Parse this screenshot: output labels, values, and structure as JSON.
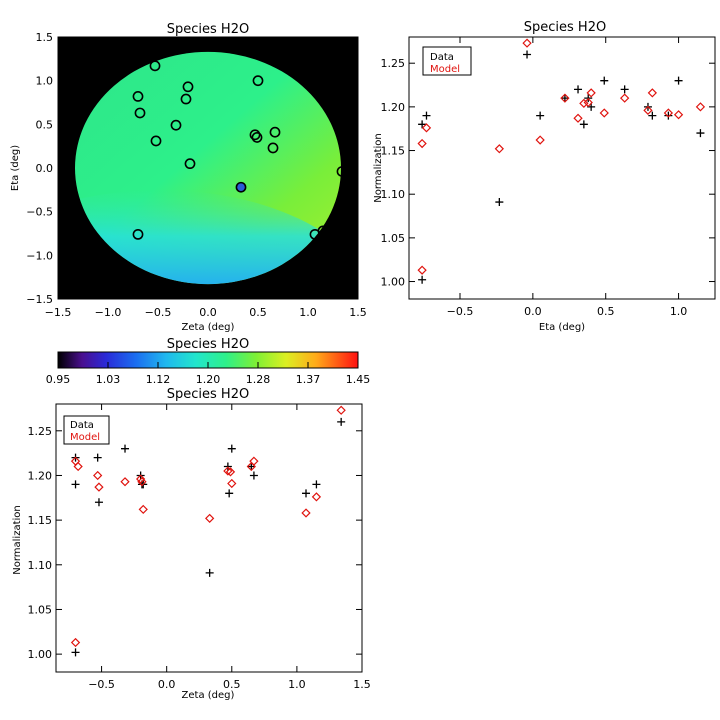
{
  "colors": {
    "data_marker": "#000000",
    "model_marker": "#e0140f",
    "map_background": "#000000",
    "highlight_marker": "#2a5bd7"
  },
  "chart_data": [
    {
      "id": "map",
      "type": "heatmap",
      "title": "Species H2O",
      "xlabel": "Zeta (deg)",
      "ylabel": "Eta (deg)",
      "xlim": [
        -1.5,
        1.5
      ],
      "ylim": [
        -1.5,
        1.5
      ],
      "xticks": [
        "−1.5",
        "−1.0",
        "−0.5",
        "0.0",
        "0.5",
        "1.0",
        "1.5"
      ],
      "yticks": [
        "−1.5",
        "−1.0",
        "−0.5",
        "0.0",
        "0.5",
        "1.0",
        "1.5"
      ],
      "field_radius": 1.33,
      "points": [
        {
          "zeta": -0.53,
          "eta": 1.17
        },
        {
          "zeta": -0.2,
          "eta": 0.93
        },
        {
          "zeta": 0.5,
          "eta": 1.0
        },
        {
          "zeta": -0.7,
          "eta": 0.82
        },
        {
          "zeta": -0.22,
          "eta": 0.79
        },
        {
          "zeta": -0.68,
          "eta": 0.63
        },
        {
          "zeta": -0.32,
          "eta": 0.49
        },
        {
          "zeta": 0.67,
          "eta": 0.41
        },
        {
          "zeta": 0.47,
          "eta": 0.38
        },
        {
          "zeta": 0.49,
          "eta": 0.35
        },
        {
          "zeta": -0.52,
          "eta": 0.31
        },
        {
          "zeta": 0.65,
          "eta": 0.23
        },
        {
          "zeta": -0.18,
          "eta": 0.05
        },
        {
          "zeta": 1.34,
          "eta": -0.04
        },
        {
          "zeta": 0.33,
          "eta": -0.22,
          "highlight": true
        },
        {
          "zeta": -0.7,
          "eta": -0.76
        },
        {
          "zeta": 1.15,
          "eta": -0.72
        },
        {
          "zeta": 1.07,
          "eta": -0.76
        }
      ]
    },
    {
      "id": "colorbar",
      "type": "heatmap",
      "title": "Species H2O",
      "range": [
        0.95,
        1.45
      ],
      "tick_labels": [
        "0.95",
        "1.03",
        "1.12",
        "1.20",
        "1.28",
        "1.37",
        "1.45"
      ]
    },
    {
      "id": "eta_plot",
      "type": "scatter",
      "title": "Species H2O",
      "xlabel": "Eta (deg)",
      "ylabel": "Normalization",
      "xlim": [
        -0.85,
        1.25
      ],
      "ylim": [
        0.98,
        1.28
      ],
      "xticks": [
        -0.5,
        0.0,
        0.5,
        1.0
      ],
      "xtick_labels": [
        "−0.5",
        "0.0",
        "0.5",
        "1.0"
      ],
      "yticks": [
        1.0,
        1.05,
        1.1,
        1.15,
        1.2,
        1.25
      ],
      "ytick_labels": [
        "1.00",
        "1.05",
        "1.10",
        "1.15",
        "1.20",
        "1.25"
      ],
      "legend": [
        "Data",
        "Model"
      ],
      "series": [
        {
          "name": "Data",
          "marker": "plus",
          "x": [
            -0.76,
            -0.76,
            -0.73,
            -0.23,
            -0.04,
            0.05,
            0.22,
            0.31,
            0.35,
            0.38,
            0.4,
            0.49,
            0.63,
            0.79,
            0.82,
            0.93,
            1.0,
            1.15
          ],
          "y": [
            1.002,
            1.18,
            1.19,
            1.091,
            1.26,
            1.19,
            1.21,
            1.22,
            1.18,
            1.21,
            1.2,
            1.23,
            1.22,
            1.2,
            1.19,
            1.19,
            1.23,
            1.17
          ]
        },
        {
          "name": "Model",
          "marker": "diamond",
          "x": [
            -0.76,
            -0.76,
            -0.73,
            -0.23,
            -0.04,
            0.05,
            0.22,
            0.31,
            0.35,
            0.38,
            0.4,
            0.49,
            0.63,
            0.79,
            0.82,
            0.93,
            1.0,
            1.15
          ],
          "y": [
            1.013,
            1.158,
            1.176,
            1.152,
            1.273,
            1.162,
            1.21,
            1.187,
            1.204,
            1.205,
            1.216,
            1.193,
            1.21,
            1.196,
            1.216,
            1.193,
            1.191,
            1.2
          ]
        }
      ]
    },
    {
      "id": "zeta_plot",
      "type": "scatter",
      "title": "Species H2O",
      "xlabel": "Zeta (deg)",
      "ylabel": "Normalization",
      "xlim": [
        -0.85,
        1.5
      ],
      "ylim": [
        0.98,
        1.28
      ],
      "xticks": [
        -0.5,
        0.0,
        0.5,
        1.0,
        1.5
      ],
      "xtick_labels": [
        "−0.5",
        "0.0",
        "0.5",
        "1.0",
        "1.5"
      ],
      "yticks": [
        1.0,
        1.05,
        1.1,
        1.15,
        1.2,
        1.25
      ],
      "ytick_labels": [
        "1.00",
        "1.05",
        "1.10",
        "1.15",
        "1.20",
        "1.25"
      ],
      "legend": [
        "Data",
        "Model"
      ],
      "series": [
        {
          "name": "Data",
          "marker": "plus",
          "x": [
            -0.7,
            -0.7,
            -0.7,
            -0.53,
            -0.52,
            -0.32,
            -0.2,
            -0.19,
            -0.18,
            0.33,
            0.47,
            0.48,
            0.5,
            0.65,
            0.67,
            1.07,
            1.15,
            1.34
          ],
          "y": [
            1.002,
            1.19,
            1.22,
            1.22,
            1.17,
            1.23,
            1.2,
            1.19,
            1.19,
            1.091,
            1.21,
            1.18,
            1.23,
            1.21,
            1.2,
            1.18,
            1.19,
            1.26
          ]
        },
        {
          "name": "Model",
          "marker": "diamond",
          "x": [
            -0.7,
            -0.7,
            -0.68,
            -0.53,
            -0.52,
            -0.32,
            -0.2,
            -0.19,
            -0.18,
            0.33,
            0.47,
            0.49,
            0.5,
            0.65,
            0.67,
            1.07,
            1.15,
            1.34
          ],
          "y": [
            1.013,
            1.216,
            1.21,
            1.2,
            1.187,
            1.193,
            1.196,
            1.193,
            1.162,
            1.152,
            1.205,
            1.204,
            1.191,
            1.21,
            1.216,
            1.158,
            1.176,
            1.273
          ]
        }
      ]
    }
  ]
}
